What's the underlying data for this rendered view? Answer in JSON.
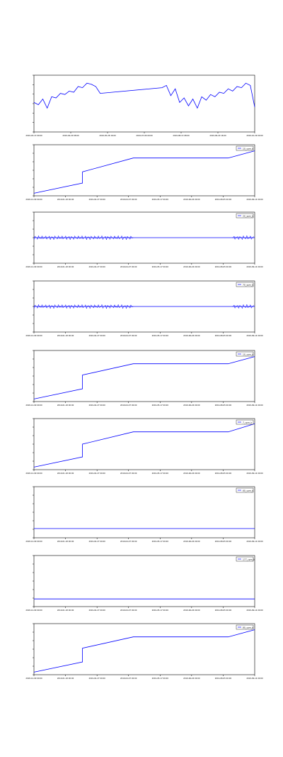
{
  "chart_data": [
    {
      "type": "line",
      "ylim": [
        0,
        1
      ],
      "x_ticks": [
        "2019-03-13 00:00",
        "2019-04-20 08:00",
        "2019-05-28 16:00",
        "2019-07-06 00:00",
        "2019-08-13 08:00",
        "2019-09-20 16:00",
        "2019-10-29 00:00"
      ],
      "y_ticks": [],
      "legend": "",
      "series": [
        {
          "name": "",
          "color": "#0000ff",
          "x": [
            0,
            0.02,
            0.04,
            0.06,
            0.08,
            0.1,
            0.12,
            0.14,
            0.16,
            0.18,
            0.2,
            0.22,
            0.24,
            0.26,
            0.28,
            0.3,
            0.58,
            0.6,
            0.62,
            0.64,
            0.66,
            0.68,
            0.7,
            0.72,
            0.74,
            0.76,
            0.78,
            0.8,
            0.82,
            0.84,
            0.86,
            0.88,
            0.9,
            0.92,
            0.94,
            0.96,
            0.98,
            1.0
          ],
          "y": [
            0.52,
            0.48,
            0.58,
            0.42,
            0.62,
            0.6,
            0.68,
            0.66,
            0.72,
            0.7,
            0.8,
            0.78,
            0.86,
            0.84,
            0.8,
            0.68,
            0.78,
            0.82,
            0.64,
            0.76,
            0.52,
            0.6,
            0.46,
            0.58,
            0.42,
            0.62,
            0.56,
            0.66,
            0.62,
            0.7,
            0.68,
            0.76,
            0.72,
            0.8,
            0.78,
            0.86,
            0.82,
            0.44
          ]
        }
      ]
    },
    {
      "type": "line",
      "ylim": [
        0,
        1
      ],
      "x_ticks": [
        "2018-12-09 00:00",
        "2019-01-18 00:00",
        "2019-02-27 00:00",
        "2019-04-07 00:00",
        "2019-05-17 00:00",
        "2019-06-26 00:00",
        "2019-08-05 00:00",
        "2019-09-14 00:00"
      ],
      "y_ticks": [],
      "legend": "10_cpm_b",
      "series": [
        {
          "name": "10_cpm_b",
          "color": "#0000ff",
          "x": [
            0,
            0.22,
            0.22,
            0.45,
            0.88,
            1.0
          ],
          "y": [
            0.05,
            0.25,
            0.47,
            0.74,
            0.74,
            0.88
          ]
        }
      ]
    },
    {
      "type": "line",
      "ylim": [
        -1,
        1
      ],
      "x_ticks": [
        "2018-12-09 00:00",
        "2019-01-18 00:00",
        "2019-02-27 00:00",
        "2019-04-07 00:00",
        "2019-05-17 00:00",
        "2019-06-26 00:00",
        "2019-08-05 00:00",
        "2019-09-14 00:00"
      ],
      "y_ticks": [],
      "legend": "20_spm_b",
      "series": [
        {
          "name": "20_spm_b",
          "color": "#0000ff",
          "x": [
            0,
            0.45,
            0.45,
            0.9,
            0.9,
            1.0
          ],
          "y": [
            0,
            0,
            0,
            0,
            0,
            0
          ]
        }
      ]
    },
    {
      "type": "line",
      "ylim": [
        -1,
        1
      ],
      "x_ticks": [
        "2018-12-09 00:00",
        "2019-01-18 00:00",
        "2019-02-27 00:00",
        "2019-04-07 00:00",
        "2019-05-17 00:00",
        "2019-06-26 00:00",
        "2019-08-05 00:00",
        "2019-09-14 00:00"
      ],
      "y_ticks": [],
      "legend": "70_spm_b",
      "series": [
        {
          "name": "70_spm_b",
          "color": "#0000ff",
          "x": [
            0,
            0.45,
            0.45,
            0.9,
            0.9,
            1.0
          ],
          "y": [
            0,
            0,
            0,
            0,
            0,
            0
          ]
        }
      ]
    },
    {
      "type": "line",
      "ylim": [
        0,
        1
      ],
      "x_ticks": [
        "2018-12-09 00:00",
        "2019-01-18 00:00",
        "2019-02-27 00:00",
        "2019-04-07 00:00",
        "2019-05-17 00:00",
        "2019-06-26 00:00",
        "2019-08-05 00:00",
        "2019-09-14 00:00"
      ],
      "y_ticks": [],
      "legend": "10_cpm_b",
      "series": [
        {
          "name": "10_cpm_b",
          "color": "#0000ff",
          "x": [
            0,
            0.22,
            0.22,
            0.45,
            0.88,
            1.0
          ],
          "y": [
            0.05,
            0.25,
            0.52,
            0.74,
            0.74,
            0.88
          ]
        }
      ]
    },
    {
      "type": "line",
      "ylim": [
        0,
        1
      ],
      "x_ticks": [
        "2018-12-09 00:00",
        "2019-01-18 00:00",
        "2019-02-27 00:00",
        "2019-04-07 00:00",
        "2019-05-17 00:00",
        "2019-06-26 00:00",
        "2019-08-05 00:00",
        "2019-09-14 00:00"
      ],
      "y_ticks": [],
      "legend": "7_cpm_b",
      "series": [
        {
          "name": "7_cpm_b",
          "color": "#0000ff",
          "x": [
            0,
            0.22,
            0.22,
            0.45,
            0.88,
            1.0
          ],
          "y": [
            0.05,
            0.25,
            0.5,
            0.74,
            0.74,
            0.9
          ]
        }
      ]
    },
    {
      "type": "line",
      "ylim": [
        0,
        1
      ],
      "x_ticks": [
        "2018-12-09 00:00",
        "2019-01-18 00:00",
        "2019-02-27 00:00",
        "2019-04-07 00:00",
        "2019-05-17 00:00",
        "2019-06-26 00:00",
        "2019-08-05 00:00",
        "2019-09-14 00:00"
      ],
      "y_ticks": [],
      "legend": "60_cpm_b",
      "series": [
        {
          "name": "60_cpm_b",
          "color": "#0000ff",
          "x": [
            0,
            1.0
          ],
          "y": [
            0.18,
            0.18
          ]
        }
      ]
    },
    {
      "type": "line",
      "ylim": [
        0,
        1
      ],
      "x_ticks": [
        "2018-12-09 00:00",
        "2019-01-18 00:00",
        "2019-02-27 00:00",
        "2019-04-07 00:00",
        "2019-05-17 00:00",
        "2019-06-26 00:00",
        "2019-08-05 00:00",
        "2019-09-14 00:00"
      ],
      "y_ticks": [],
      "legend": "177_cpm_b",
      "series": [
        {
          "name": "177_cpm_b",
          "color": "#0000ff",
          "x": [
            0,
            1.0
          ],
          "y": [
            0.15,
            0.15
          ]
        }
      ]
    },
    {
      "type": "line",
      "ylim": [
        0,
        1
      ],
      "x_ticks": [
        "2018-12-09 00:00",
        "2019-01-18 00:00",
        "2019-02-27 00:00",
        "2019-04-07 00:00",
        "2019-05-17 00:00",
        "2019-06-26 00:00",
        "2019-08-05 00:00",
        "2019-09-14 00:00"
      ],
      "y_ticks": [],
      "legend": "80_cpm_b",
      "series": [
        {
          "name": "80_cpm_b",
          "color": "#0000ff",
          "x": [
            0,
            0.22,
            0.22,
            0.45,
            0.88,
            1.0
          ],
          "y": [
            0.05,
            0.25,
            0.52,
            0.74,
            0.74,
            0.88
          ]
        }
      ]
    }
  ]
}
